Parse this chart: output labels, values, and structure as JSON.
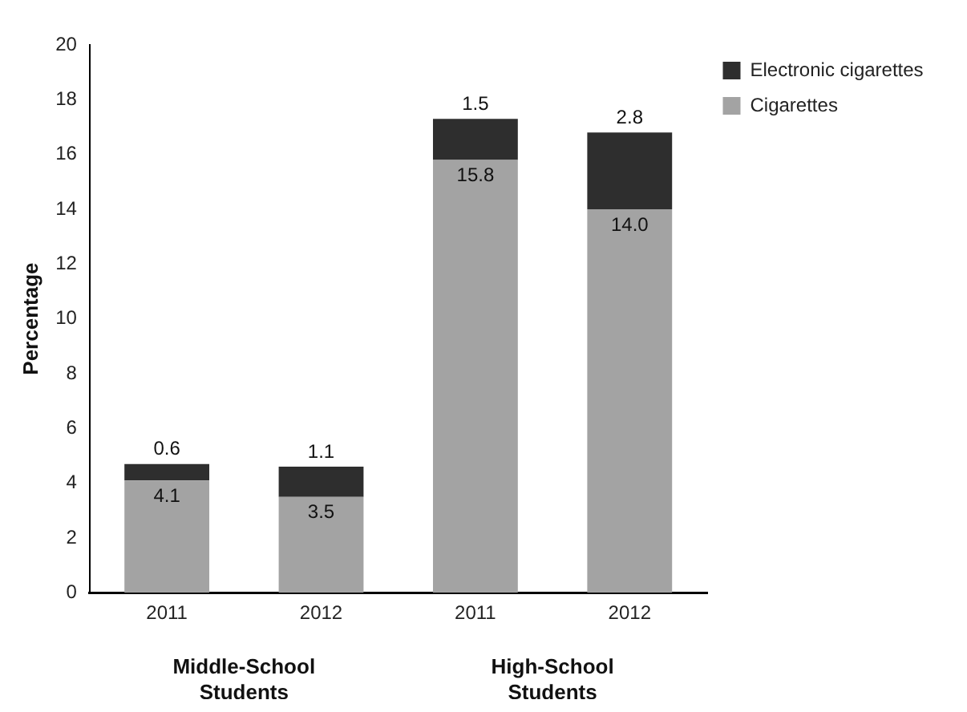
{
  "chart_data": {
    "type": "bar",
    "stacked": true,
    "categories": [
      "2011",
      "2012",
      "2011",
      "2012"
    ],
    "series": [
      {
        "name": "Cigarettes",
        "color": "#a3a3a3",
        "values": [
          4.1,
          3.5,
          15.8,
          14.0
        ],
        "value_labels": [
          "4.1",
          "3.5",
          "15.8",
          "14.0"
        ]
      },
      {
        "name": "Electronic cigarettes",
        "color": "#2e2e2e",
        "values": [
          0.6,
          1.1,
          1.5,
          2.8
        ],
        "value_labels": [
          "0.6",
          "1.1",
          "1.5",
          "2.8"
        ]
      }
    ],
    "ylabel": "Percentage",
    "ylim": [
      0,
      20
    ],
    "yticks": [
      0,
      2,
      4,
      6,
      8,
      10,
      12,
      14,
      16,
      18,
      20
    ],
    "grid": false,
    "legend": "top right",
    "annotations": [
      "Middle-School Students",
      "High-School Students"
    ]
  }
}
